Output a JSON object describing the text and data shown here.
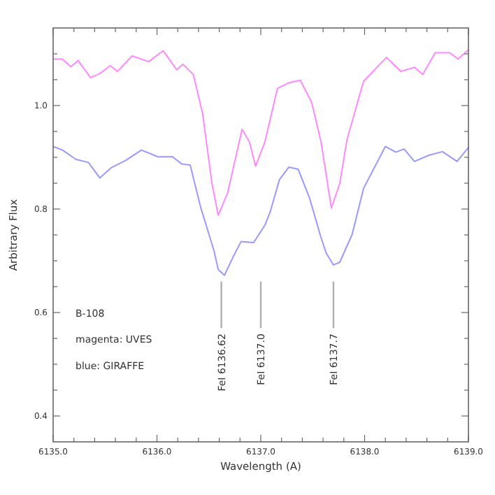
{
  "chart_data": {
    "type": "line",
    "xlabel": "Wavelength (A)",
    "ylabel": "Arbitrary Flux",
    "xlim": [
      6135,
      6139
    ],
    "ylim": [
      0.35,
      1.15
    ],
    "xticks": [
      {
        "value": 6135,
        "label": "6135.0"
      },
      {
        "value": 6135.2,
        "label": null
      },
      {
        "value": 6135.4,
        "label": null
      },
      {
        "value": 6135.6,
        "label": null
      },
      {
        "value": 6135.8,
        "label": null
      },
      {
        "value": 6136,
        "label": "6136.0"
      },
      {
        "value": 6136.2,
        "label": null
      },
      {
        "value": 6136.4,
        "label": null
      },
      {
        "value": 6136.6,
        "label": null
      },
      {
        "value": 6136.8,
        "label": null
      },
      {
        "value": 6137,
        "label": "6137.0"
      },
      {
        "value": 6137.2,
        "label": null
      },
      {
        "value": 6137.4,
        "label": null
      },
      {
        "value": 6137.6,
        "label": null
      },
      {
        "value": 6137.8,
        "label": null
      },
      {
        "value": 6138,
        "label": "6138.0"
      },
      {
        "value": 6138.2,
        "label": null
      },
      {
        "value": 6138.4,
        "label": null
      },
      {
        "value": 6138.6,
        "label": null
      },
      {
        "value": 6138.8,
        "label": null
      },
      {
        "value": 6139,
        "label": "6139.0"
      }
    ],
    "yticks": [
      0.4,
      {
        "value": 0.45,
        "label": null
      },
      {
        "value": 0.5,
        "label": null
      },
      {
        "value": 0.55,
        "label": null
      },
      0.6,
      {
        "value": 0.65,
        "label": null
      },
      {
        "value": 0.7,
        "label": null
      },
      {
        "value": 0.75,
        "label": null
      },
      0.8,
      {
        "value": 0.85,
        "label": null
      },
      {
        "value": 0.9,
        "label": null
      },
      {
        "value": 0.95,
        "label": null
      },
      {
        "value": 1.0,
        "label": "1.0"
      },
      {
        "value": 1.05,
        "label": null
      },
      {
        "value": 1.1,
        "label": null
      }
    ],
    "grid": false,
    "marker": "none",
    "line_style": "solid",
    "series": [
      {
        "color": "#ff88ff",
        "x": [
          6135.0,
          6135.09,
          6135.17,
          6135.24,
          6135.36,
          6135.45,
          6135.55,
          6135.62,
          6135.76,
          6135.92,
          6136.06,
          6136.19,
          6136.25,
          6136.35,
          6136.44,
          6136.53,
          6136.59,
          6136.68,
          6136.82,
          6136.89,
          6136.95,
          6137.04,
          6137.16,
          6137.27,
          6137.38,
          6137.49,
          6137.58,
          6137.68,
          6137.76,
          6137.83,
          6137.99,
          6138.21,
          6138.35,
          6138.48,
          6138.56,
          6138.68,
          6138.82,
          6138.9,
          6139.0
        ],
        "values": [
          1.09,
          1.09,
          1.075,
          1.087,
          1.054,
          1.062,
          1.077,
          1.066,
          1.096,
          1.085,
          1.106,
          1.069,
          1.08,
          1.06,
          0.984,
          0.849,
          0.788,
          0.831,
          0.954,
          0.93,
          0.883,
          0.93,
          1.033,
          1.044,
          1.049,
          1.006,
          0.93,
          0.802,
          0.849,
          0.934,
          1.047,
          1.093,
          1.066,
          1.074,
          1.06,
          1.102,
          1.102,
          1.09,
          1.108
        ]
      },
      {
        "color": "#9999ff",
        "x": [
          6135.0,
          6135.09,
          6135.22,
          6135.34,
          6135.45,
          6135.56,
          6135.7,
          6135.85,
          6136.01,
          6136.15,
          6136.24,
          6136.32,
          6136.42,
          6136.55,
          6136.59,
          6136.65,
          6136.73,
          6136.81,
          6136.93,
          6137.04,
          6137.09,
          6137.18,
          6137.27,
          6137.36,
          6137.47,
          6137.58,
          6137.63,
          6137.7,
          6137.76,
          6137.88,
          6137.99,
          6138.2,
          6138.3,
          6138.38,
          6138.48,
          6138.62,
          6138.75,
          6138.89,
          6139.0
        ],
        "values": [
          0.921,
          0.914,
          0.896,
          0.89,
          0.86,
          0.88,
          0.894,
          0.914,
          0.901,
          0.901,
          0.887,
          0.885,
          0.804,
          0.719,
          0.683,
          0.672,
          0.706,
          0.737,
          0.735,
          0.769,
          0.794,
          0.857,
          0.881,
          0.877,
          0.821,
          0.745,
          0.715,
          0.692,
          0.697,
          0.751,
          0.84,
          0.921,
          0.91,
          0.916,
          0.892,
          0.904,
          0.911,
          0.892,
          0.919
        ]
      }
    ],
    "ref_lines": [
      {
        "axis": "x",
        "value": 6136.62,
        "label": "FeI 6136.62",
        "color": "#b0b0b0"
      },
      {
        "axis": "x",
        "value": 6137.0,
        "label": "FeI 6137.0",
        "color": "#b0b0b0"
      },
      {
        "axis": "x",
        "value": 6137.7,
        "label": "FeI 6137.7",
        "color": "#b0b0b0"
      }
    ],
    "annotations": [
      "B-108",
      "magenta: UVES",
      "blue: GIRAFFE"
    ]
  }
}
